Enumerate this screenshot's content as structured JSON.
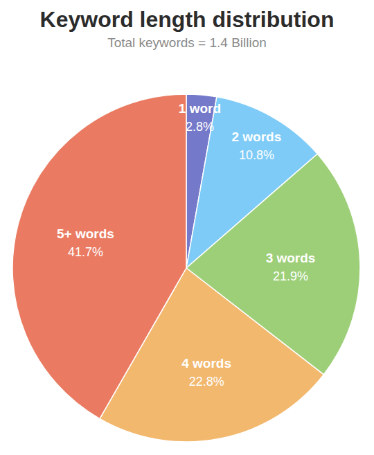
{
  "chart_data": {
    "type": "pie",
    "title": "Keyword length distribution",
    "subtitle": "Total keywords = 1.4 Billion",
    "categories": [
      "1 word",
      "2 words",
      "3 words",
      "4 words",
      "5+ words"
    ],
    "values": [
      2.8,
      10.8,
      21.9,
      22.8,
      41.7
    ],
    "value_labels": [
      "2.8%",
      "10.8%",
      "21.9%",
      "22.8%",
      "41.7%"
    ],
    "colors": [
      "#7479c9",
      "#7ecbf7",
      "#9dcf78",
      "#f2b86e",
      "#ea7b62"
    ],
    "data_labels": true
  }
}
